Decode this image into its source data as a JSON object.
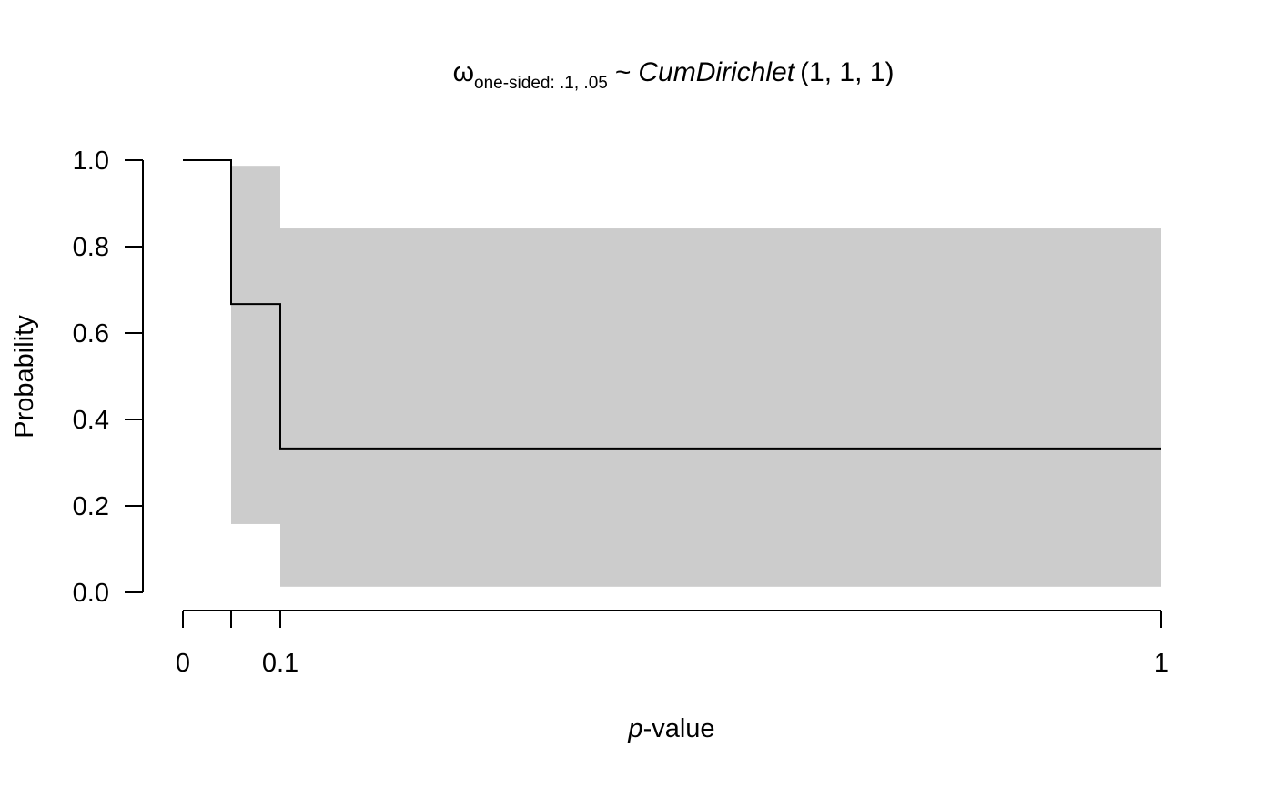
{
  "chart_data": {
    "type": "step",
    "title": {
      "symbol": "ω",
      "subscript": "one-sided: .1, .05",
      "tilde": "~",
      "distribution": "CumDirichlet",
      "params": "(1, 1, 1)"
    },
    "xlabel": {
      "italic": "p",
      "rest": "-value"
    },
    "ylabel": "Probability",
    "xlim": [
      0,
      1
    ],
    "ylim": [
      0,
      1
    ],
    "x_breaks": [
      0,
      0.05,
      0.1,
      1
    ],
    "x_tick_labels": [
      "0",
      "",
      "0.1",
      "1"
    ],
    "y_ticks": [
      0,
      0.2,
      0.4,
      0.6,
      0.8,
      1.0
    ],
    "y_tick_labels": [
      "0.0",
      "0.2",
      "0.4",
      "0.6",
      "0.8",
      "1.0"
    ],
    "steps": [
      {
        "x_start": 0,
        "x_end": 0.05,
        "mean": 1.0,
        "lower": 1.0,
        "upper": 1.0
      },
      {
        "x_start": 0.05,
        "x_end": 0.1,
        "mean": 0.667,
        "lower": 0.158,
        "upper": 0.987
      },
      {
        "x_start": 0.1,
        "x_end": 1,
        "mean": 0.333,
        "lower": 0.013,
        "upper": 0.842
      }
    ],
    "band_color": "#cccccc",
    "line_color": "#000000",
    "grid": false,
    "legend": "none"
  }
}
